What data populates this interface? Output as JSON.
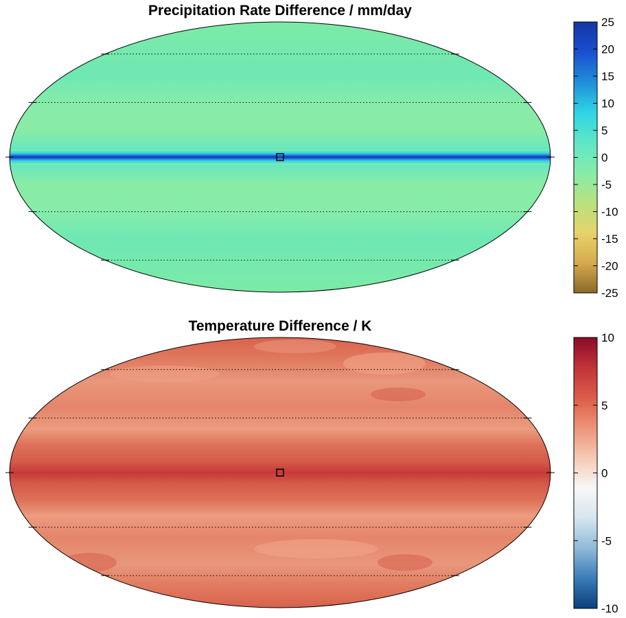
{
  "chart_data": [
    {
      "type": "heatmap",
      "projection": "mollweide",
      "title": "Precipitation Rate Difference / mm/day",
      "colormap": "cyan-blue high, green near zero, brown low",
      "clim": [
        -25,
        25
      ],
      "colorbar_ticks": [
        "25",
        "20",
        "15",
        "10",
        "5",
        "0",
        "-5",
        "-10",
        "-15",
        "-20",
        "-25"
      ],
      "colorbar_tick_values": [
        25,
        20,
        15,
        10,
        5,
        0,
        -5,
        -10,
        -15,
        -20,
        -25
      ],
      "field_description_values": {
        "equatorial_band_max": 25,
        "background_typical": 0,
        "subtropical_min": -4
      },
      "marker": "small black square at lon 0, lat 0",
      "grid": true
    },
    {
      "type": "heatmap",
      "projection": "mollweide",
      "title": "Temperature Difference / K",
      "colormap": "red-white-blue diverging",
      "clim": [
        -10,
        10
      ],
      "colorbar_ticks": [
        "10",
        "5",
        "0",
        "-5",
        "-10"
      ],
      "colorbar_tick_values": [
        10,
        5,
        0,
        -5,
        -10
      ],
      "field_description_values": {
        "equatorial_band_max": 8,
        "midlatitude_typical": 4,
        "polar_edge": 7
      },
      "marker": "small black square at lon 0, lat 0",
      "grid": true
    }
  ],
  "colors": {
    "precip_stops": [
      "#8a6a2a",
      "#d6aa4e",
      "#e6d26a",
      "#b9e27e",
      "#86ecaa",
      "#5fe6c6",
      "#2fd4e4",
      "#1f8ed9",
      "#1a4fcf",
      "#1436a6"
    ],
    "temp_stops": [
      "#0c3f7a",
      "#3b7bb8",
      "#8fbad9",
      "#d6e5ef",
      "#f7f7f7",
      "#f5c9b4",
      "#ec9478",
      "#db5c48",
      "#c2323a",
      "#8a0c25"
    ]
  }
}
